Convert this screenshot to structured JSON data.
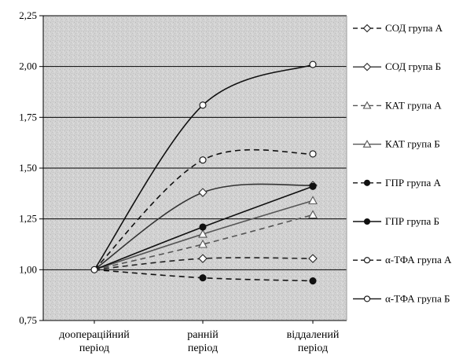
{
  "chart_data": {
    "type": "line",
    "title": "",
    "xlabel": "",
    "ylabel": "",
    "ylim": [
      0.75,
      2.25
    ],
    "yticks": [
      "0,75",
      "1,00",
      "1,25",
      "1,50",
      "1,75",
      "2,00",
      "2,25"
    ],
    "categories": [
      [
        "доопераційний",
        "період"
      ],
      [
        "ранній",
        "період"
      ],
      [
        "віддалений",
        "період"
      ]
    ],
    "grid": "horizontal",
    "plot_background": "grey speckled texture",
    "legend_position": "right",
    "series": [
      {
        "name": "СОД  група А",
        "values": [
          1.0,
          1.055,
          1.055
        ],
        "marker": "diamond",
        "fill": "open",
        "dash": "dashed",
        "color": "#222222"
      },
      {
        "name": "СОД  група Б",
        "values": [
          1.0,
          1.38,
          1.415
        ],
        "marker": "diamond",
        "fill": "open",
        "dash": "solid",
        "color": "#333333"
      },
      {
        "name": "КАТ група А",
        "values": [
          1.0,
          1.125,
          1.27
        ],
        "marker": "triangle",
        "fill": "open",
        "dash": "dashed",
        "color": "#555555"
      },
      {
        "name": "КАТ група Б",
        "values": [
          1.0,
          1.175,
          1.34
        ],
        "marker": "triangle",
        "fill": "open",
        "dash": "solid",
        "color": "#555555"
      },
      {
        "name": "ГПР група А",
        "values": [
          1.0,
          0.96,
          0.945
        ],
        "marker": "circle",
        "fill": "filled",
        "dash": "dashed",
        "color": "#111111"
      },
      {
        "name": "ГПР група Б",
        "values": [
          1.0,
          1.21,
          1.41
        ],
        "marker": "circle",
        "fill": "filled",
        "dash": "solid",
        "color": "#111111"
      },
      {
        "name": "α-ТФА група А",
        "values": [
          1.0,
          1.54,
          1.57
        ],
        "marker": "circle",
        "fill": "open",
        "dash": "dashed",
        "color": "#111111"
      },
      {
        "name": "α-ТФА група Б",
        "values": [
          1.0,
          1.81,
          2.01
        ],
        "marker": "circle",
        "fill": "open",
        "dash": "solid",
        "color": "#111111"
      }
    ]
  }
}
